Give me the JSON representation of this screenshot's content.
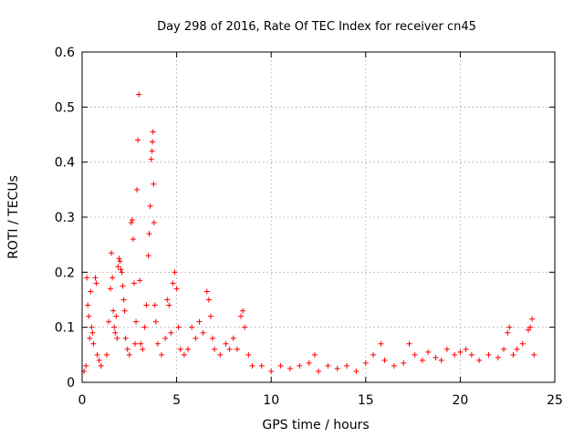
{
  "chart_data": {
    "type": "scatter",
    "title": "Day 298 of 2016, Rate Of TEC Index for receiver cn45",
    "xlabel": "GPS time / hours",
    "ylabel": "ROTI / TECUs",
    "xlim": [
      0,
      25
    ],
    "ylim": [
      0,
      0.6
    ],
    "xticks": [
      0,
      5,
      10,
      15,
      20,
      25
    ],
    "yticks": [
      0,
      0.1,
      0.2,
      0.3,
      0.4,
      0.5,
      0.6
    ],
    "xtick_labels": [
      "0",
      "5",
      "10",
      "15",
      "20",
      "25"
    ],
    "ytick_labels": [
      "0",
      "0.1",
      "0.2",
      "0.3",
      "0.4",
      "0.5",
      "0.6"
    ],
    "grid": true,
    "marker": "+",
    "color": "#ff0000",
    "series": [
      {
        "name": "ROTI",
        "points": [
          [
            0.1,
            0.02
          ],
          [
            0.2,
            0.03
          ],
          [
            0.25,
            0.19
          ],
          [
            0.3,
            0.14
          ],
          [
            0.35,
            0.12
          ],
          [
            0.4,
            0.08
          ],
          [
            0.45,
            0.165
          ],
          [
            0.5,
            0.1
          ],
          [
            0.55,
            0.09
          ],
          [
            0.6,
            0.07
          ],
          [
            0.7,
            0.19
          ],
          [
            0.75,
            0.18
          ],
          [
            0.8,
            0.05
          ],
          [
            0.9,
            0.04
          ],
          [
            1.0,
            0.03
          ],
          [
            1.3,
            0.05
          ],
          [
            1.4,
            0.11
          ],
          [
            1.5,
            0.17
          ],
          [
            1.55,
            0.235
          ],
          [
            1.6,
            0.19
          ],
          [
            1.65,
            0.13
          ],
          [
            1.7,
            0.1
          ],
          [
            1.75,
            0.09
          ],
          [
            1.8,
            0.12
          ],
          [
            1.85,
            0.08
          ],
          [
            1.9,
            0.21
          ],
          [
            1.95,
            0.225
          ],
          [
            2.0,
            0.22
          ],
          [
            2.05,
            0.205
          ],
          [
            2.1,
            0.2
          ],
          [
            2.15,
            0.175
          ],
          [
            2.2,
            0.15
          ],
          [
            2.25,
            0.13
          ],
          [
            2.3,
            0.08
          ],
          [
            2.4,
            0.06
          ],
          [
            2.5,
            0.05
          ],
          [
            2.6,
            0.29
          ],
          [
            2.65,
            0.295
          ],
          [
            2.7,
            0.26
          ],
          [
            2.75,
            0.18
          ],
          [
            2.8,
            0.07
          ],
          [
            2.85,
            0.11
          ],
          [
            2.9,
            0.35
          ],
          [
            2.95,
            0.44
          ],
          [
            3.0,
            0.523
          ],
          [
            3.05,
            0.185
          ],
          [
            3.1,
            0.07
          ],
          [
            3.2,
            0.06
          ],
          [
            3.3,
            0.1
          ],
          [
            3.4,
            0.14
          ],
          [
            3.5,
            0.23
          ],
          [
            3.55,
            0.27
          ],
          [
            3.6,
            0.32
          ],
          [
            3.65,
            0.405
          ],
          [
            3.7,
            0.42
          ],
          [
            3.72,
            0.437
          ],
          [
            3.75,
            0.455
          ],
          [
            3.78,
            0.36
          ],
          [
            3.8,
            0.29
          ],
          [
            3.85,
            0.14
          ],
          [
            3.9,
            0.11
          ],
          [
            4.0,
            0.07
          ],
          [
            4.2,
            0.05
          ],
          [
            4.4,
            0.08
          ],
          [
            4.5,
            0.15
          ],
          [
            4.6,
            0.14
          ],
          [
            4.7,
            0.09
          ],
          [
            4.8,
            0.18
          ],
          [
            4.9,
            0.2
          ],
          [
            5.0,
            0.17
          ],
          [
            5.1,
            0.1
          ],
          [
            5.2,
            0.06
          ],
          [
            5.4,
            0.05
          ],
          [
            5.6,
            0.06
          ],
          [
            5.8,
            0.1
          ],
          [
            6.0,
            0.08
          ],
          [
            6.2,
            0.11
          ],
          [
            6.4,
            0.09
          ],
          [
            6.6,
            0.165
          ],
          [
            6.7,
            0.15
          ],
          [
            6.8,
            0.12
          ],
          [
            6.9,
            0.08
          ],
          [
            7.0,
            0.06
          ],
          [
            7.3,
            0.05
          ],
          [
            7.6,
            0.07
          ],
          [
            7.8,
            0.06
          ],
          [
            8.0,
            0.08
          ],
          [
            8.2,
            0.06
          ],
          [
            8.4,
            0.12
          ],
          [
            8.5,
            0.13
          ],
          [
            8.6,
            0.1
          ],
          [
            8.8,
            0.05
          ],
          [
            9.0,
            0.03
          ],
          [
            9.5,
            0.03
          ],
          [
            10.0,
            0.02
          ],
          [
            10.5,
            0.03
          ],
          [
            11.0,
            0.025
          ],
          [
            11.5,
            0.03
          ],
          [
            12.0,
            0.035
          ],
          [
            12.3,
            0.05
          ],
          [
            12.5,
            0.02
          ],
          [
            13.0,
            0.03
          ],
          [
            13.5,
            0.025
          ],
          [
            14.0,
            0.03
          ],
          [
            14.5,
            0.02
          ],
          [
            15.0,
            0.035
          ],
          [
            15.4,
            0.05
          ],
          [
            15.8,
            0.07
          ],
          [
            16.0,
            0.04
          ],
          [
            16.5,
            0.03
          ],
          [
            17.0,
            0.035
          ],
          [
            17.3,
            0.07
          ],
          [
            17.6,
            0.05
          ],
          [
            18.0,
            0.04
          ],
          [
            18.3,
            0.055
          ],
          [
            18.7,
            0.045
          ],
          [
            19.0,
            0.04
          ],
          [
            19.3,
            0.06
          ],
          [
            19.7,
            0.05
          ],
          [
            20.0,
            0.055
          ],
          [
            20.3,
            0.06
          ],
          [
            20.6,
            0.05
          ],
          [
            21.0,
            0.04
          ],
          [
            21.5,
            0.05
          ],
          [
            22.0,
            0.045
          ],
          [
            22.3,
            0.06
          ],
          [
            22.5,
            0.09
          ],
          [
            22.6,
            0.1
          ],
          [
            22.8,
            0.05
          ],
          [
            23.0,
            0.06
          ],
          [
            23.3,
            0.07
          ],
          [
            23.6,
            0.095
          ],
          [
            23.7,
            0.1
          ],
          [
            23.8,
            0.115
          ],
          [
            23.9,
            0.05
          ]
        ]
      }
    ]
  }
}
